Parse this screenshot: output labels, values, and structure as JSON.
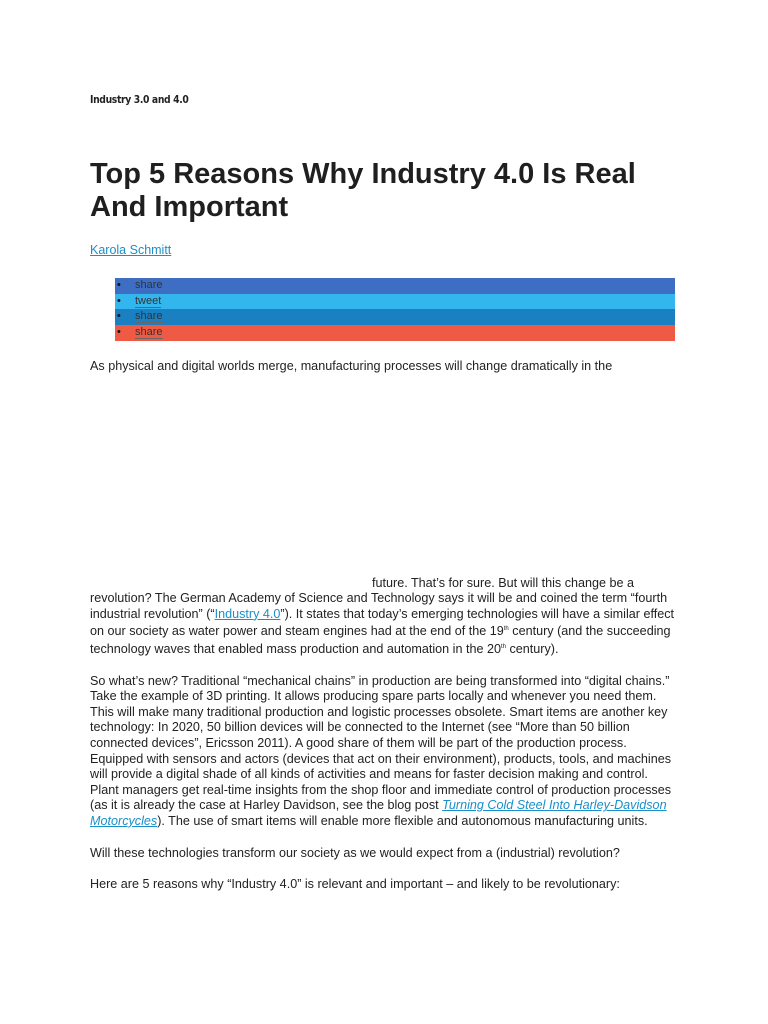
{
  "kicker": "Industry 3.0 and 4.0",
  "title": "Top 5 Reasons Why Industry 4.0 Is Real And Important",
  "author": "Karola Schmitt",
  "share_buttons": [
    "share",
    "tweet",
    "share",
    "share"
  ],
  "intro": "As physical and digital worlds merge, manufacturing processes will change dramatically in the",
  "paragraphs": [
    [
      {
        "text": "future. That’s for sure. But will this change be a revolution? The German Academy of Science and Technology says it will be and coined the term “fourth industrial revolution” (“",
        "style": "plain"
      },
      {
        "text": "Industry 4.0",
        "style": "link"
      },
      {
        "text": "”). It states that today’s emerging technologies will have a similar effect on our society as water power and steam engines had at the end of the 19",
        "style": "plain"
      },
      {
        "text": "th",
        "style": "sup"
      },
      {
        "text": " century (and the succeeding technology waves that enabled mass production and automation in the 20",
        "style": "plain"
      },
      {
        "text": "th",
        "style": "sup"
      },
      {
        "text": " century).",
        "style": "plain"
      }
    ],
    [
      {
        "text": "So what’s new? Traditional “mechanical chains” in production are being transformed into “digital chains.” Take the example of 3D printing. It allows producing spare parts locally and whenever you need them. This will make many traditional production and logistic processes obsolete. Smart items are another key technology: In 2020, 50 billion devices will be connected to the Internet (see “More than 50 billion connected devices”, Ericsson 2011). A good share of them will be part of the production process. Equipped with sensors and actors (devices that act on their environment), products, tools, and machines will provide a digital shade of all kinds of activities and means for faster decision making and control. Plant managers get real-time insights from the shop floor and immediate control of production processes (as it is already the case at Harley Davidson, see the blog post ",
        "style": "plain"
      },
      {
        "text": "Turning Cold Steel Into Harley-Davidson Motorcycles",
        "style": "italic-link"
      },
      {
        "text": "). The use of smart items will enable more flexible and autonomous manufacturing units.",
        "style": "plain"
      }
    ],
    [
      {
        "text": "Will these technologies transform our society as we would expect from a (industrial) revolution?",
        "style": "plain"
      }
    ],
    [
      {
        "text": "Here are 5 reasons why “Industry 4.0” is relevant and important – and likely to be revolutionary:",
        "style": "plain"
      }
    ]
  ]
}
